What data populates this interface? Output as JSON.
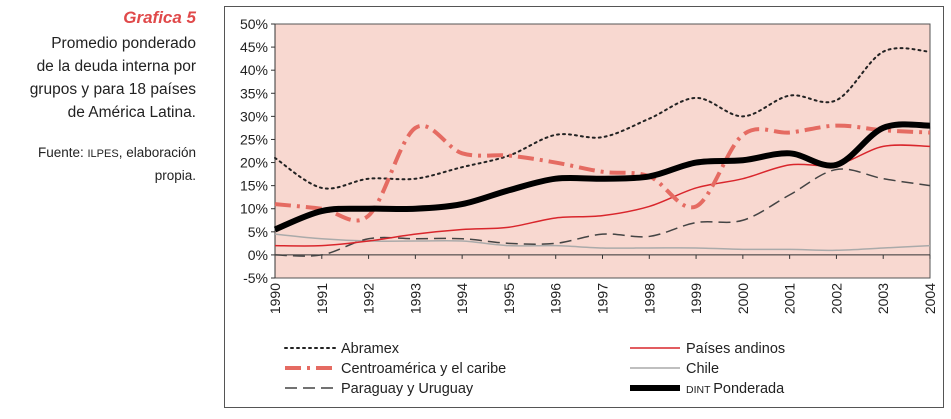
{
  "figure": {
    "number": "Grafica 5",
    "title_lines": [
      "Promedio ponderado",
      "de la deuda interna por",
      "grupos y para 18 países",
      "de América Latina."
    ],
    "source_prefix": "Fuente: ",
    "source_org": "ILPES",
    "source_suffix": ", elaboración",
    "source_line2": "propia."
  },
  "colors": {
    "plot_background": "#f8d8d0",
    "abramex": "#222222",
    "centroamerica": "#e56b62",
    "paraguay": "#444444",
    "andinos": "#d9262c",
    "chile": "#aaaaaa",
    "dint": "#000000"
  },
  "chart_data": {
    "type": "line",
    "x": [
      1990,
      1991,
      1992,
      1993,
      1994,
      1995,
      1996,
      1997,
      1998,
      1999,
      2000,
      2001,
      2002,
      2003,
      2004
    ],
    "x_tick_labels": [
      "1990",
      "1991",
      "1992",
      "1993",
      "1994",
      "1995",
      "1996",
      "1997",
      "1998",
      "1999",
      "2000",
      "2001",
      "2002",
      "2003",
      "2004"
    ],
    "ylim": [
      -5,
      50
    ],
    "y_ticks": [
      -5,
      0,
      5,
      10,
      15,
      20,
      25,
      30,
      35,
      40,
      45,
      50
    ],
    "y_tick_labels": [
      "-5%",
      "0%",
      "5%",
      "10%",
      "15%",
      "20%",
      "25%",
      "30%",
      "35%",
      "40%",
      "45%",
      "50%"
    ],
    "grid": false,
    "legend_position": "bottom",
    "series": [
      {
        "name": "Abramex",
        "key": "abramex",
        "values": [
          21,
          14.5,
          16.5,
          16.5,
          19,
          21.5,
          26,
          25.5,
          29.5,
          34,
          30,
          34.5,
          33.5,
          44,
          44
        ]
      },
      {
        "name": "Centroamérica y el caribe",
        "key": "centroamerica",
        "values": [
          11,
          10,
          8.5,
          27.5,
          22,
          21.5,
          20,
          18,
          17,
          10.5,
          26,
          26.5,
          28,
          27,
          26.5
        ]
      },
      {
        "name": "Paraguay y Uruguay",
        "key": "paraguay",
        "values": [
          0,
          0,
          3.5,
          3.5,
          3.5,
          2.5,
          2.5,
          4.5,
          4,
          7,
          7.5,
          13,
          18.5,
          16.5,
          15
        ]
      },
      {
        "name": "Países andinos",
        "key": "andinos",
        "values": [
          2,
          2,
          3,
          4.5,
          5.5,
          6,
          8,
          8.5,
          10.5,
          14.5,
          16.5,
          19.5,
          19.5,
          23.5,
          23.5
        ]
      },
      {
        "name": "Chile",
        "key": "chile",
        "values": [
          4.5,
          3.5,
          3,
          3,
          3,
          2,
          2,
          1.5,
          1.5,
          1.5,
          1.2,
          1.2,
          1,
          1.5,
          2
        ]
      },
      {
        "name": "Ponderada",
        "legend_prefix": "DINT",
        "key": "dint",
        "values": [
          5.5,
          9.5,
          10,
          10,
          11,
          14,
          16.5,
          16.5,
          17,
          20,
          20.5,
          22,
          19.5,
          27.5,
          28
        ]
      }
    ]
  }
}
